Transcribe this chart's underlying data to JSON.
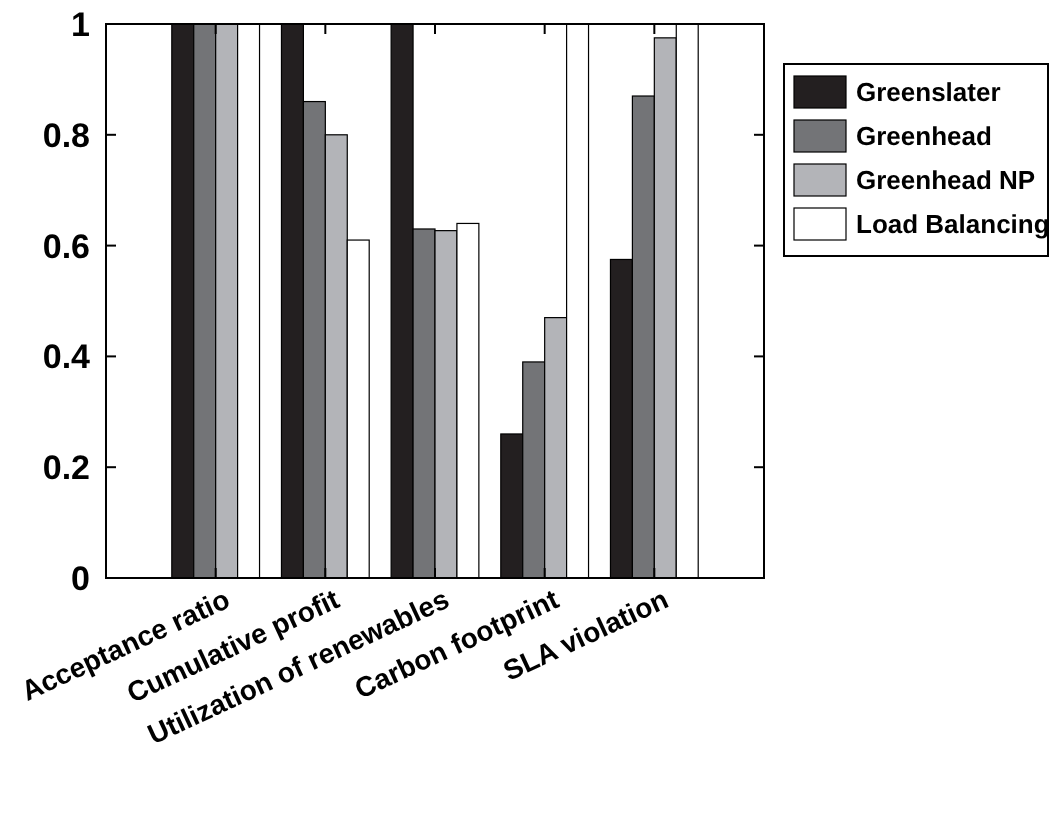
{
  "chart_data": {
    "type": "bar",
    "categories": [
      "Acceptance ratio",
      "Cumulative profit",
      "Utilization of renewables",
      "Carbon footprint",
      "SLA violation"
    ],
    "series": [
      {
        "name": "Greenslater",
        "color": "#231f20",
        "values": [
          1,
          1,
          1,
          0.26,
          0.575
        ]
      },
      {
        "name": "Greenhead",
        "color": "#737477",
        "values": [
          1,
          0.86,
          0.63,
          0.39,
          0.87
        ]
      },
      {
        "name": "Greenhead NP",
        "color": "#b3b4b8",
        "values": [
          1,
          0.8,
          0.627,
          0.47,
          0.975
        ]
      },
      {
        "name": "Load Balancing",
        "color": "#ffffff",
        "values": [
          1,
          0.61,
          0.64,
          1,
          1
        ]
      }
    ],
    "ylim": [
      0,
      1
    ],
    "yticks": [
      0,
      {
        "value": 0.2,
        "label": "0.2"
      },
      {
        "value": 0.4,
        "label": "0.4"
      },
      {
        "value": 0.6,
        "label": "0.6"
      },
      {
        "value": 0.8,
        "label": "0.8"
      },
      1
    ],
    "grid": false,
    "legend": "right"
  }
}
